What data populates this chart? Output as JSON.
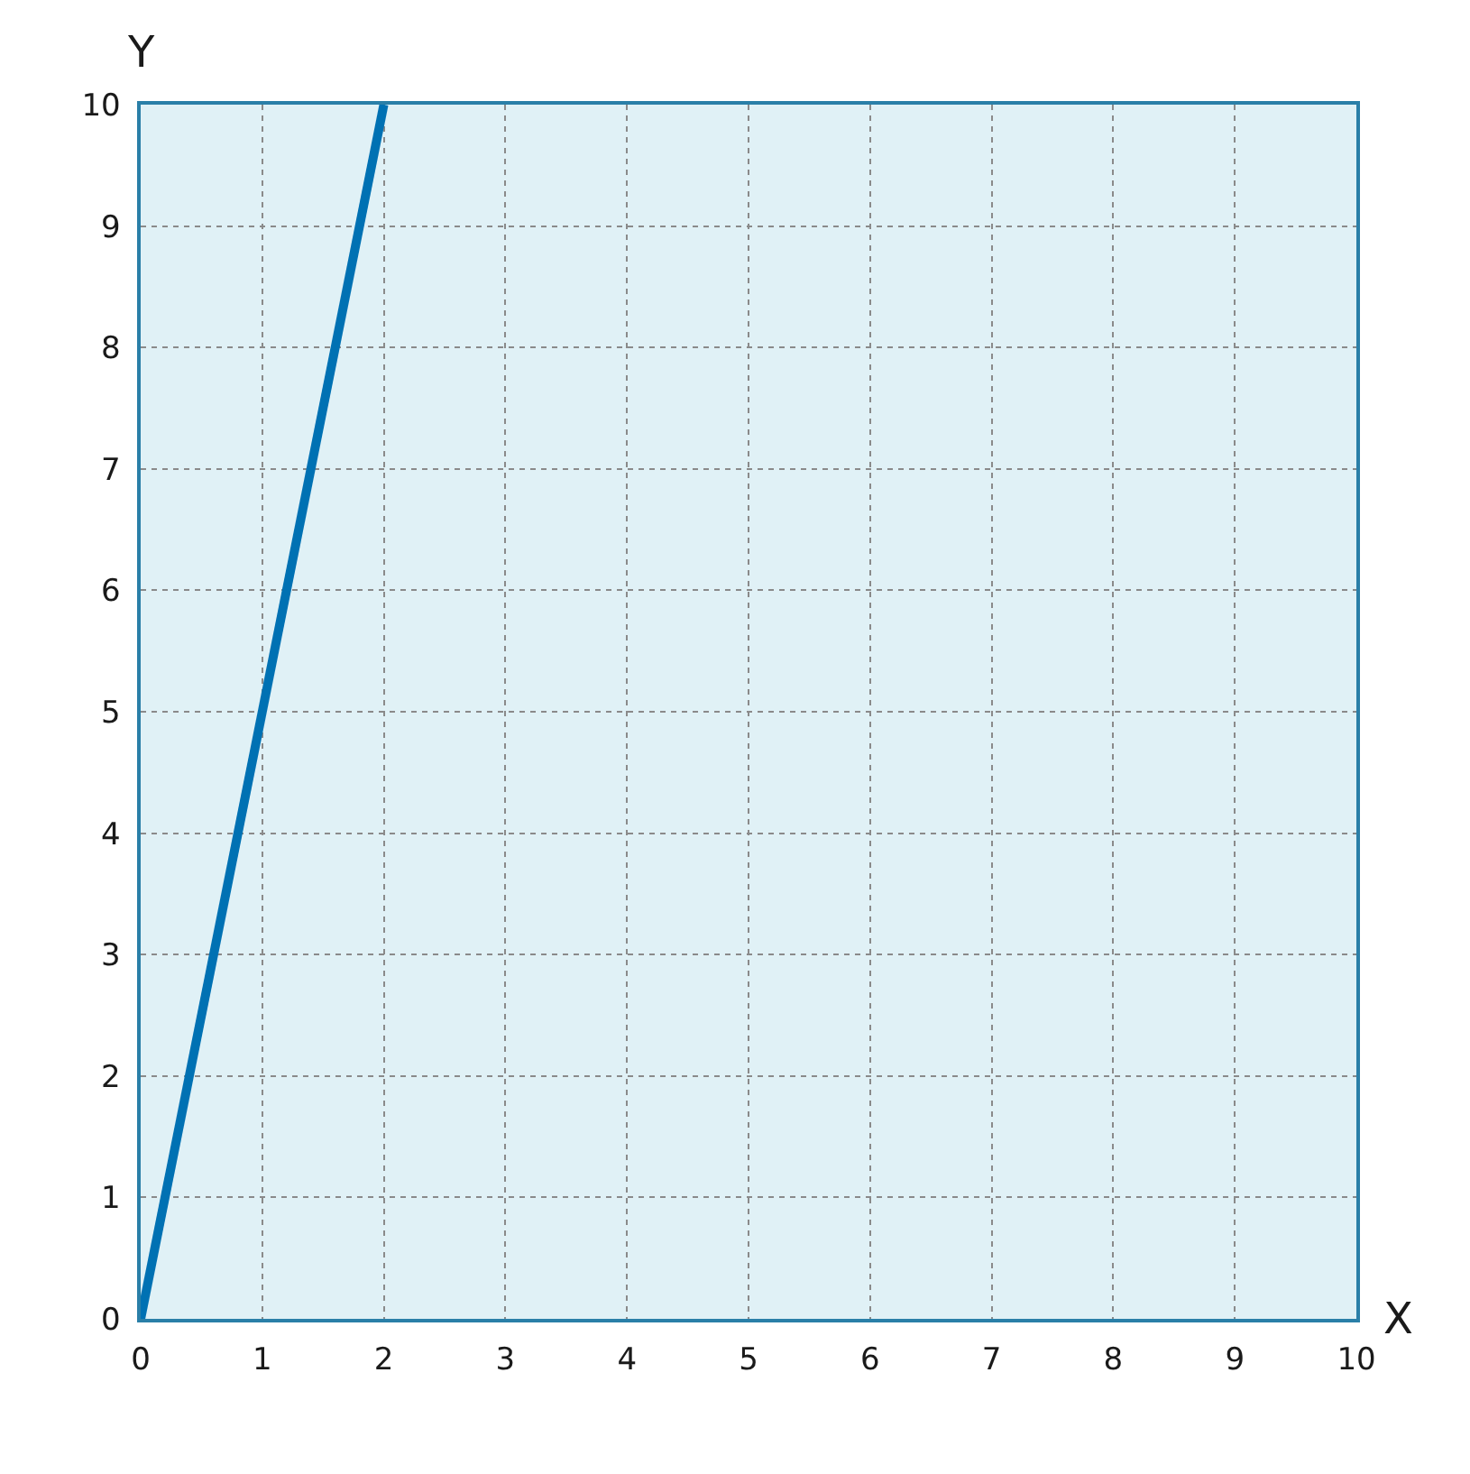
{
  "chart_data": {
    "type": "line",
    "xlabel": "X",
    "ylabel": "Y",
    "x": [
      0,
      2
    ],
    "series": [
      {
        "color": "#0071b3",
        "values": [
          0,
          10
        ]
      }
    ],
    "xlim": [
      0,
      10
    ],
    "ylim": [
      0,
      10
    ],
    "xticks": [
      0,
      1,
      2,
      3,
      4,
      5,
      6,
      7,
      8,
      9,
      10
    ],
    "yticks": [
      0,
      1,
      2,
      3,
      4,
      5,
      6,
      7,
      8,
      9,
      10
    ],
    "grid": true,
    "line_style": "solid",
    "marker": "none"
  }
}
